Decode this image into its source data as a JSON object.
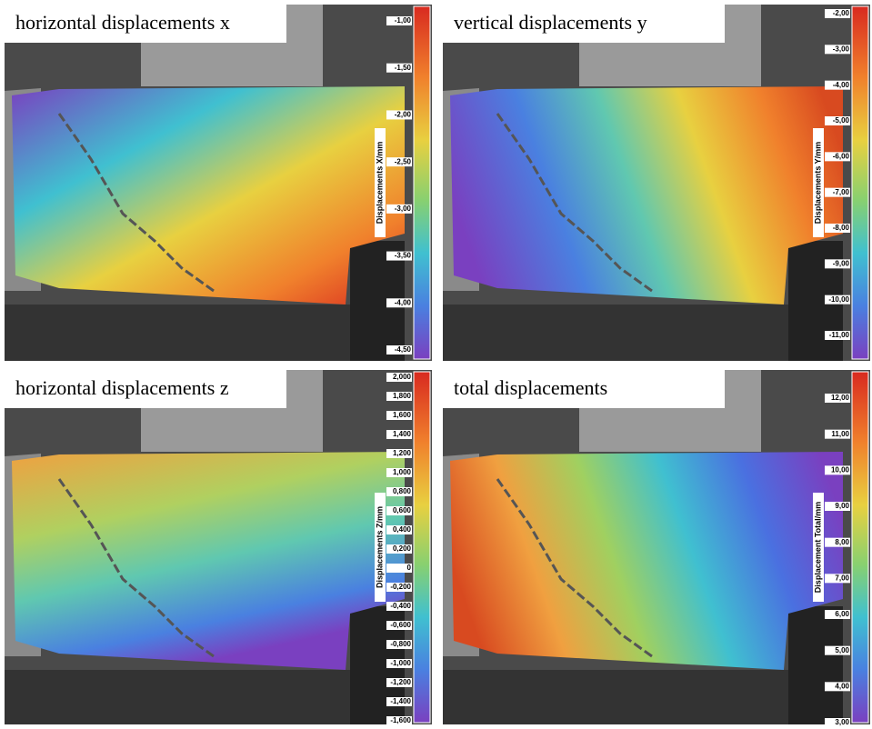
{
  "panels": [
    {
      "title": "horizontal displacements x",
      "axis_label": "Displacements X/mm",
      "ticks": [
        "-1,00",
        "-1,50",
        "-2,00",
        "-2,50",
        "-3,00",
        "-3,50",
        "-4,00",
        "-4,50"
      ]
    },
    {
      "title": "vertical displacements y",
      "axis_label": "Displacements Y/mm",
      "ticks": [
        "-2,00",
        "-3,00",
        "-4,00",
        "-5,00",
        "-6,00",
        "-7,00",
        "-8,00",
        "-9,00",
        "-10,00",
        "-11,00"
      ]
    },
    {
      "title": "horizontal displacements z",
      "axis_label": "Displacements Z/mm",
      "ticks": [
        "2,000",
        "1,800",
        "1,600",
        "1,400",
        "1,200",
        "1,000",
        "0,800",
        "0,600",
        "0,400",
        "0,200",
        "0",
        "-0,200",
        "-0,400",
        "-0,600",
        "-0,800",
        "-1,000",
        "-1,200",
        "-1,400",
        "-1,600"
      ]
    },
    {
      "title": "total displacements",
      "axis_label": "Displacement Total/mm",
      "ticks": [
        "12,00",
        "11,00",
        "10,00",
        "9,00",
        "8,00",
        "7,00",
        "6,00",
        "5,00",
        "4,00",
        "3,00"
      ]
    }
  ]
}
